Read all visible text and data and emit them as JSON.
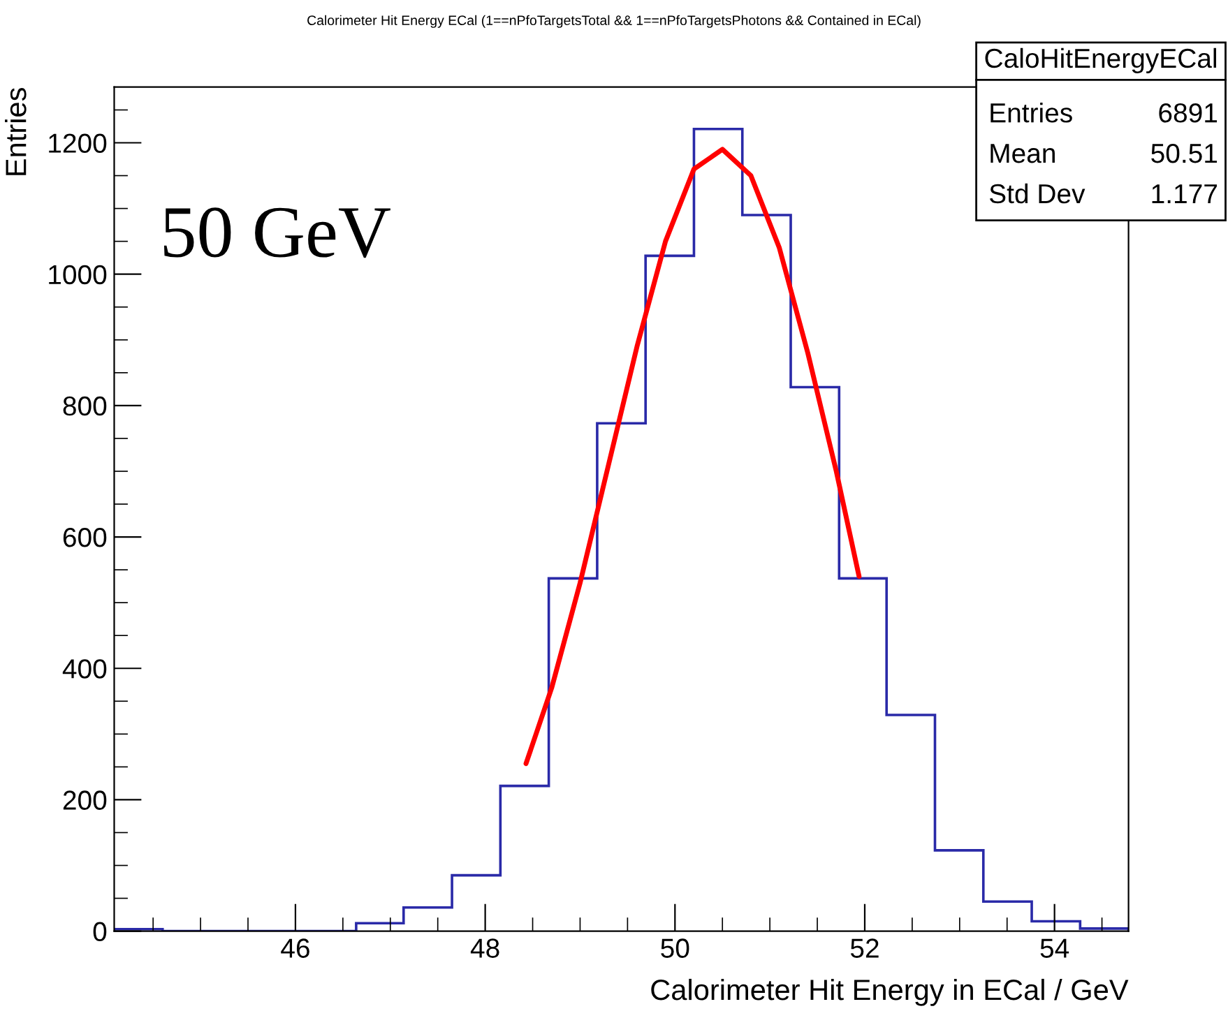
{
  "chart_data": {
    "type": "histogram",
    "title": "Calorimeter Hit Energy ECal (1==nPfoTargetsTotal && 1==nPfoTargetsPhotons && Contained in ECal)",
    "xlabel": "Calorimeter Hit Energy in ECal / GeV",
    "ylabel": "Entries",
    "bins": [
      44.09,
      44.6,
      45.11,
      45.62,
      46.13,
      46.64,
      47.14,
      47.65,
      48.16,
      48.67,
      49.18,
      49.69,
      50.2,
      50.71,
      51.22,
      51.73,
      52.23,
      52.74,
      53.25,
      53.76,
      54.27,
      54.78
    ],
    "values": [
      3,
      0,
      0,
      0,
      0,
      12,
      36,
      85,
      221,
      537,
      773,
      1028,
      1221,
      1090,
      828,
      537,
      329,
      123,
      45,
      15,
      4
    ],
    "color": "#2a2aa8",
    "series": [
      {
        "type": "line",
        "color": "#ff0000",
        "x": [
          48.43,
          48.7,
          49.0,
          49.3,
          49.6,
          49.9,
          50.2,
          50.5,
          50.8,
          51.1,
          51.4,
          51.7,
          51.94
        ],
        "values": [
          255,
          370,
          530,
          710,
          890,
          1050,
          1160,
          1190,
          1150,
          1040,
          880,
          700,
          540
        ]
      }
    ],
    "xlim": [
      44.09,
      54.78
    ],
    "ylim": [
      0,
      1285
    ],
    "xticks": [
      46,
      48,
      50,
      52,
      54
    ],
    "yticks": [
      0,
      200,
      400,
      600,
      800,
      1000,
      1200
    ],
    "grid": false,
    "annotations": [
      "CaloHitEnergyECal",
      "Entries",
      "6891",
      "Mean",
      "50.51",
      "Std Dev",
      "1.177",
      "50 GeV"
    ]
  }
}
